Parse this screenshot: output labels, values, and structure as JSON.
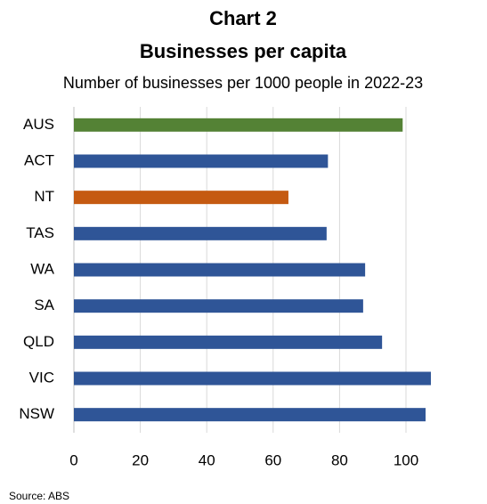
{
  "chart_data": {
    "type": "bar",
    "orientation": "horizontal",
    "title": "Chart 2",
    "heading": "Businesses per capita",
    "subtitle": "Number of businesses per 1000 people in 2022-23",
    "source": "Source: ABS",
    "categories": [
      "AUS",
      "ACT",
      "NT",
      "TAS",
      "WA",
      "SA",
      "QLD",
      "VIC",
      "NSW"
    ],
    "values": [
      99,
      76.5,
      64.6,
      76.1,
      87.7,
      87.1,
      92.8,
      107.5,
      105.9
    ],
    "colors": [
      "#548235",
      "#2f5597",
      "#c55a11",
      "#2f5597",
      "#2f5597",
      "#2f5597",
      "#2f5597",
      "#2f5597",
      "#2f5597"
    ],
    "xlim": [
      0,
      120
    ],
    "xticks": [
      0,
      20,
      40,
      60,
      80,
      100
    ],
    "grid": true
  }
}
